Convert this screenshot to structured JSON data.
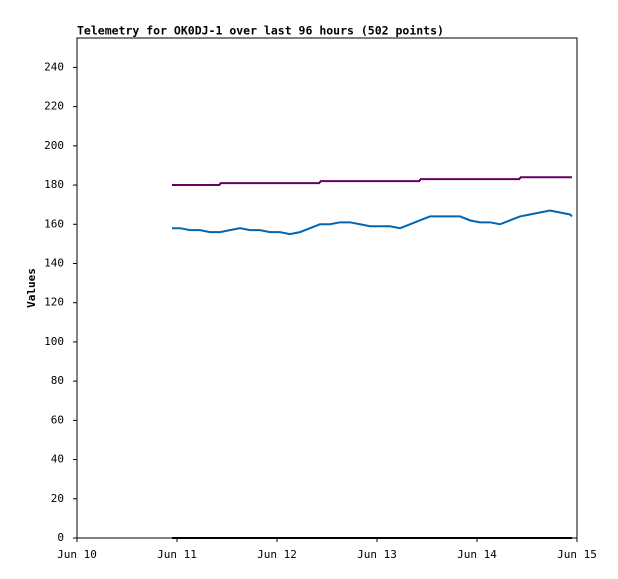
{
  "chart_data": {
    "type": "line",
    "title": "Telemetry for OK0DJ-1 over last 96 hours (502 points)",
    "y_label": "Values",
    "xlim": [
      10,
      15
    ],
    "xticks": [
      {
        "value": 10,
        "label": "Jun 10"
      },
      {
        "value": 11,
        "label": "Jun 11"
      },
      {
        "value": 12,
        "label": "Jun 12"
      },
      {
        "value": 13,
        "label": "Jun 13"
      },
      {
        "value": 14,
        "label": "Jun 14"
      },
      {
        "value": 15,
        "label": "Jun 15"
      }
    ],
    "ylim": [
      0,
      255
    ],
    "yticks": [
      0,
      20,
      40,
      60,
      80,
      100,
      120,
      140,
      160,
      180,
      200,
      220,
      240
    ],
    "grid": false,
    "series": [
      {
        "color": "#660066",
        "step": "post",
        "x": [
          10.95,
          11.43,
          12.43,
          13.43,
          14.43,
          14.95
        ],
        "values": [
          180,
          181,
          182,
          183,
          184,
          184
        ]
      },
      {
        "color": "#0066b3",
        "x": [
          10.95,
          11.03,
          11.13,
          11.23,
          11.33,
          11.43,
          11.53,
          11.63,
          11.73,
          11.83,
          11.93,
          12.03,
          12.13,
          12.23,
          12.33,
          12.43,
          12.53,
          12.63,
          12.73,
          12.83,
          12.93,
          13.03,
          13.13,
          13.23,
          13.33,
          13.43,
          13.53,
          13.63,
          13.73,
          13.83,
          13.93,
          14.03,
          14.13,
          14.23,
          14.33,
          14.43,
          14.53,
          14.63,
          14.73,
          14.83,
          14.93,
          14.95
        ],
        "values": [
          158,
          158,
          157,
          157,
          156,
          156,
          157,
          158,
          157,
          157,
          156,
          156,
          155,
          156,
          158,
          160,
          160,
          161,
          161,
          160,
          159,
          159,
          159,
          158,
          160,
          162,
          164,
          164,
          164,
          164,
          162,
          161,
          161,
          160,
          162,
          164,
          165,
          166,
          167,
          166,
          165,
          164
        ]
      },
      {
        "color": "#000000",
        "x": [
          10.95,
          14.95
        ],
        "values": [
          0,
          0
        ]
      }
    ]
  }
}
